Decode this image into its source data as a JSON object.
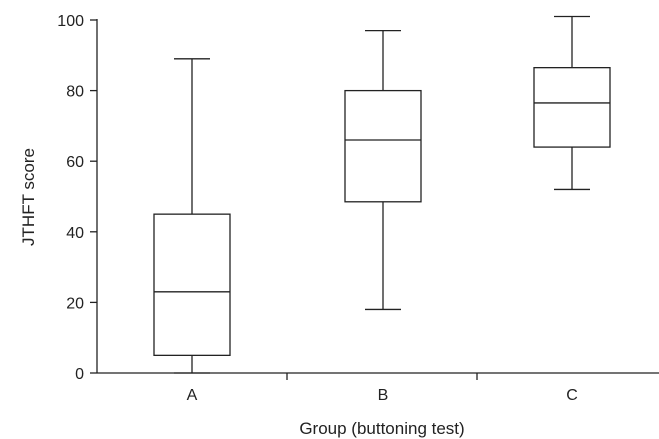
{
  "chart_data": {
    "type": "box",
    "xlabel": "Group (buttoning test)",
    "ylabel": "JTHFT score",
    "ylim": [
      0,
      100
    ],
    "yticks": [
      0,
      20,
      40,
      60,
      80,
      100
    ],
    "categories": [
      "A",
      "B",
      "C"
    ],
    "boxes": [
      {
        "category": "A",
        "min": 0,
        "q1": 5,
        "median": 23,
        "q3": 45,
        "max": 89
      },
      {
        "category": "B",
        "min": 18,
        "q1": 48.5,
        "median": 66,
        "q3": 80,
        "max": 97
      },
      {
        "category": "C",
        "min": 52,
        "q1": 64,
        "median": 76.5,
        "q3": 86.5,
        "max": 101
      }
    ],
    "grid": false,
    "legend": "none"
  }
}
